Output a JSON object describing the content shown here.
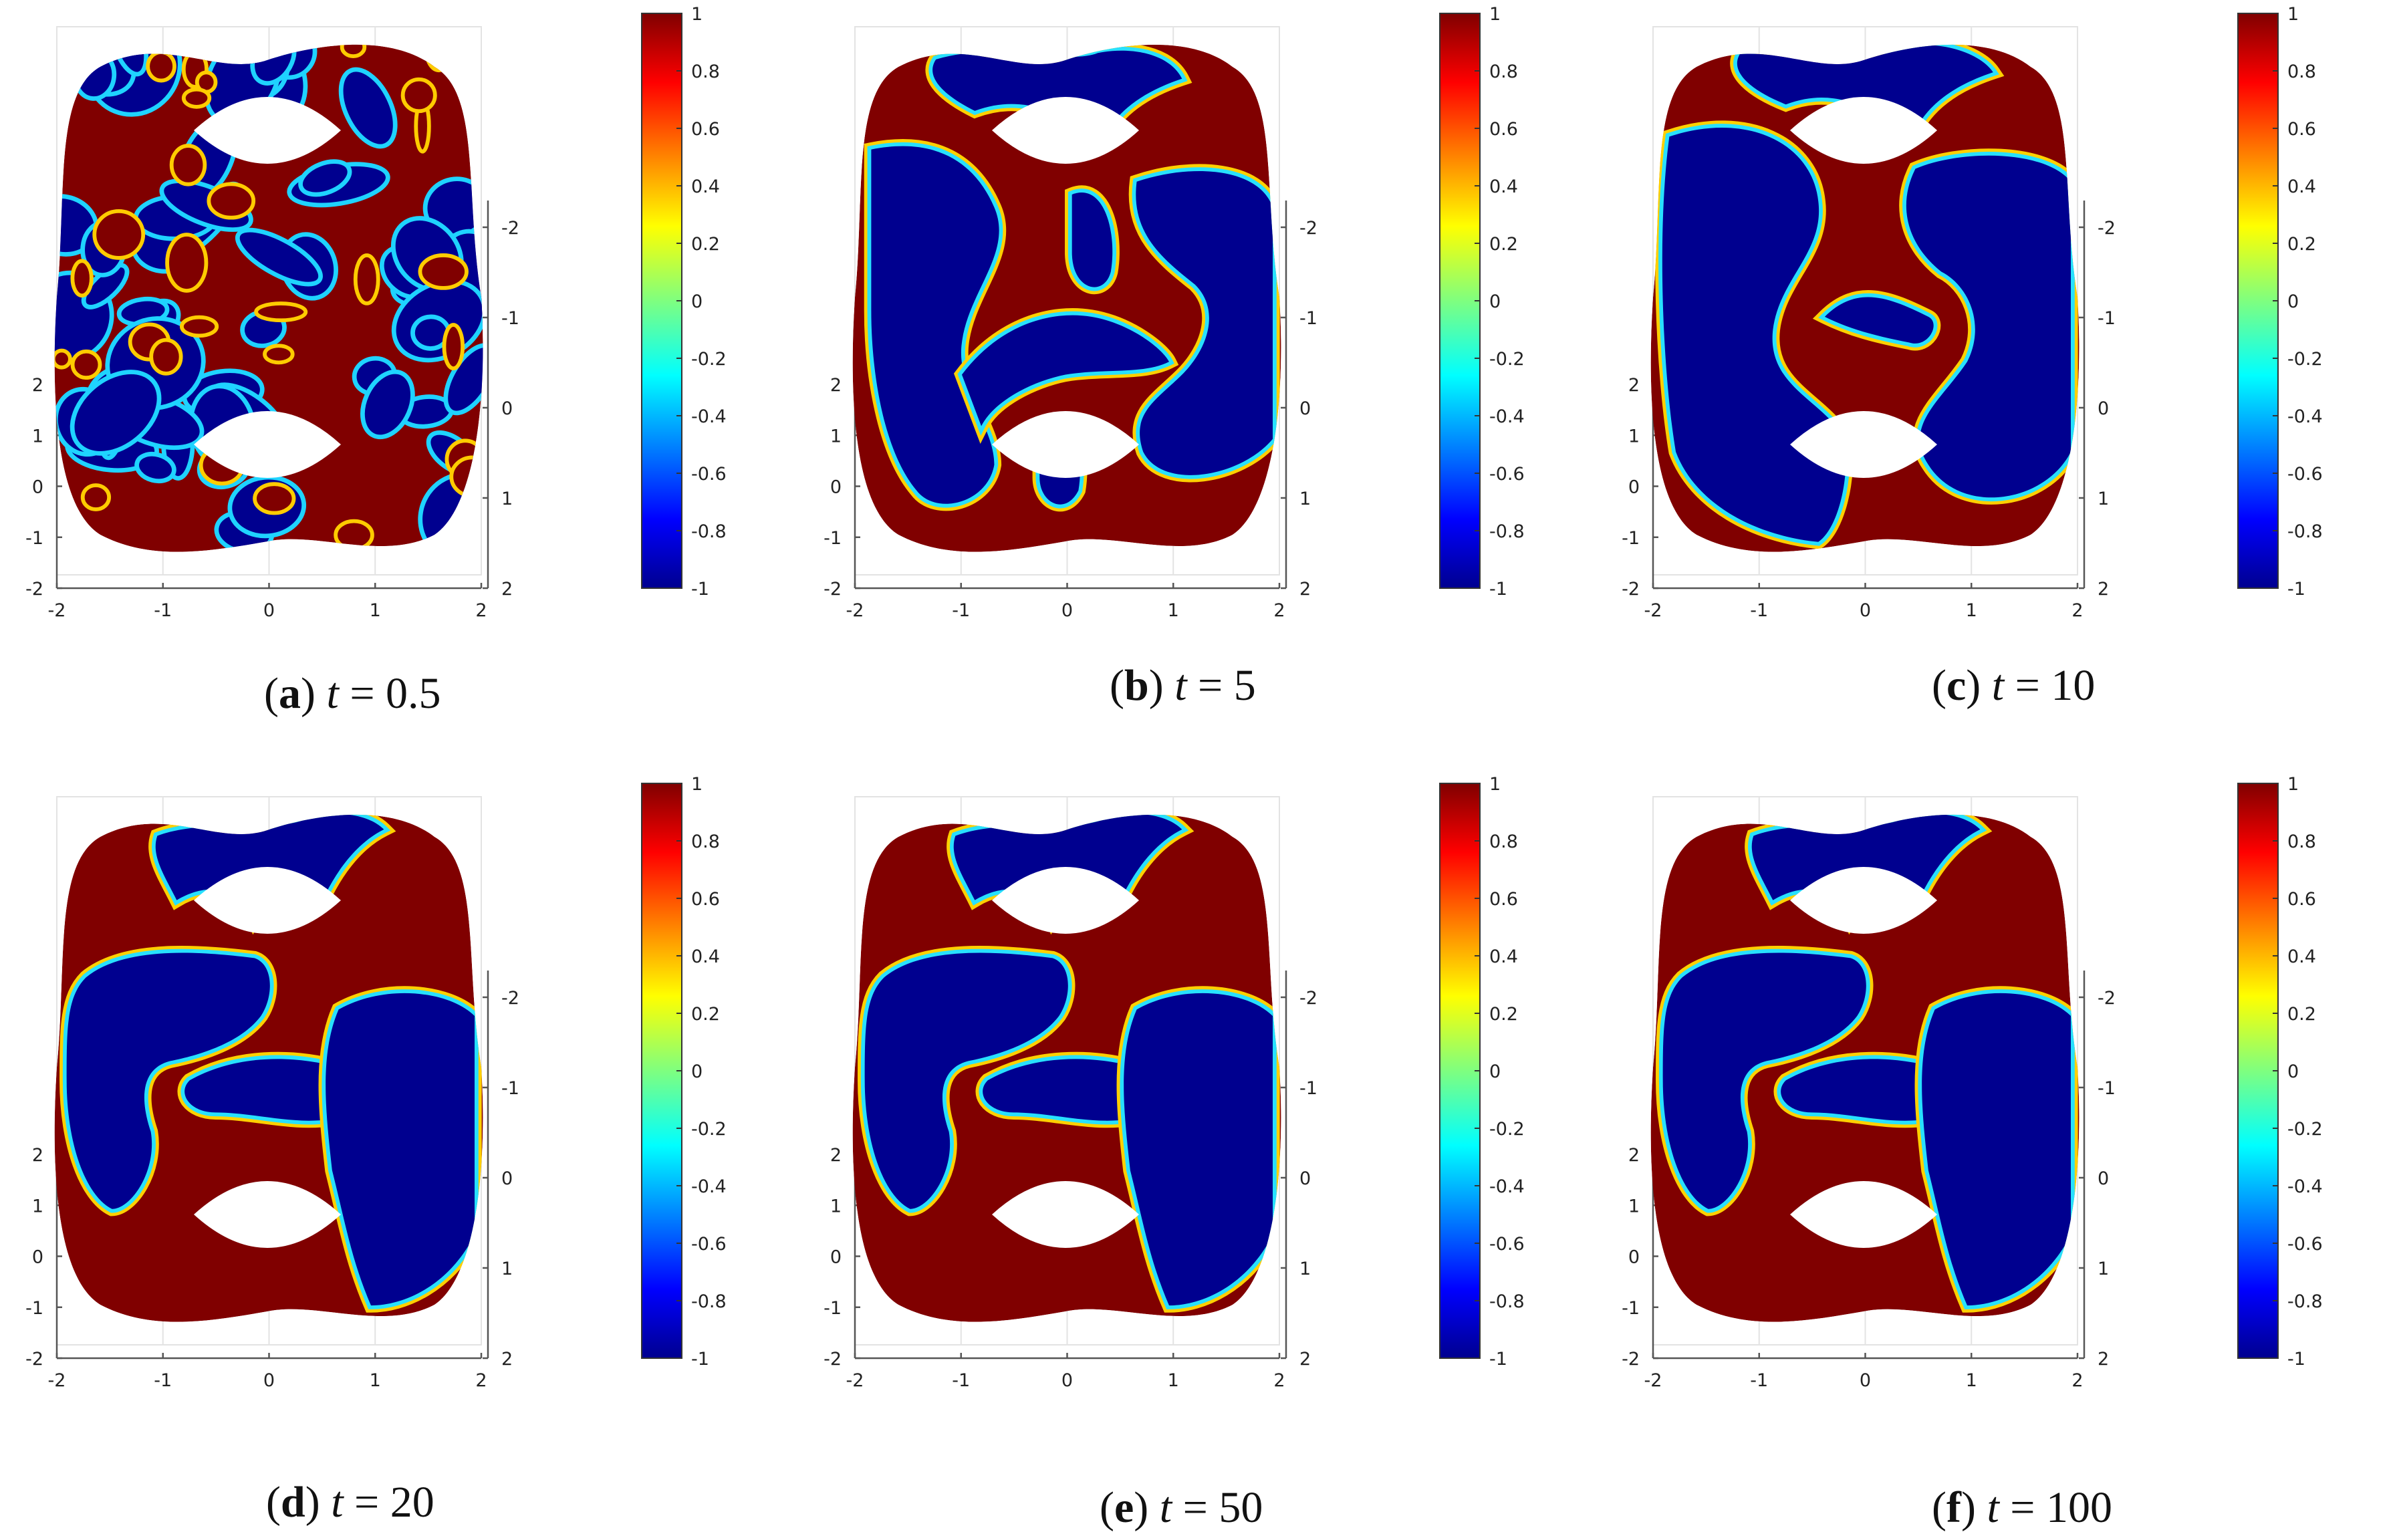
{
  "figure": {
    "panels": [
      {
        "label": "a",
        "t_label": "t",
        "eq": " = ",
        "t_value": "0.5",
        "pattern": 0
      },
      {
        "label": "b",
        "t_label": "t",
        "eq": " = ",
        "t_value": "5",
        "pattern": 1
      },
      {
        "label": "c",
        "t_label": "t",
        "eq": " = ",
        "t_value": "10",
        "pattern": 2
      },
      {
        "label": "d",
        "t_label": "t",
        "eq": " = ",
        "t_value": "20",
        "pattern": 3
      },
      {
        "label": "e",
        "t_label": "t",
        "eq": " = ",
        "t_value": "50",
        "pattern": 3
      },
      {
        "label": "f",
        "t_label": "t",
        "eq": " = ",
        "t_value": "100",
        "pattern": 3
      }
    ],
    "x_ticks": [
      "-2",
      "-1",
      "0",
      "1",
      "2"
    ],
    "z_ticks": [
      "-2",
      "-1",
      "0",
      "1",
      "2"
    ],
    "y_ticks": [
      "-2",
      "-1",
      "0",
      "1",
      "2"
    ],
    "colorbar_ticks": [
      "1",
      "0.8",
      "0.6",
      "0.4",
      "0.2",
      "0",
      "-0.2",
      "-0.4",
      "-0.6",
      "-0.8",
      "-1"
    ],
    "colors": {
      "high": "#800000",
      "low": "#00008f",
      "axis": "#555555",
      "grid": "#e3e3e3"
    },
    "colormap": "jet"
  }
}
